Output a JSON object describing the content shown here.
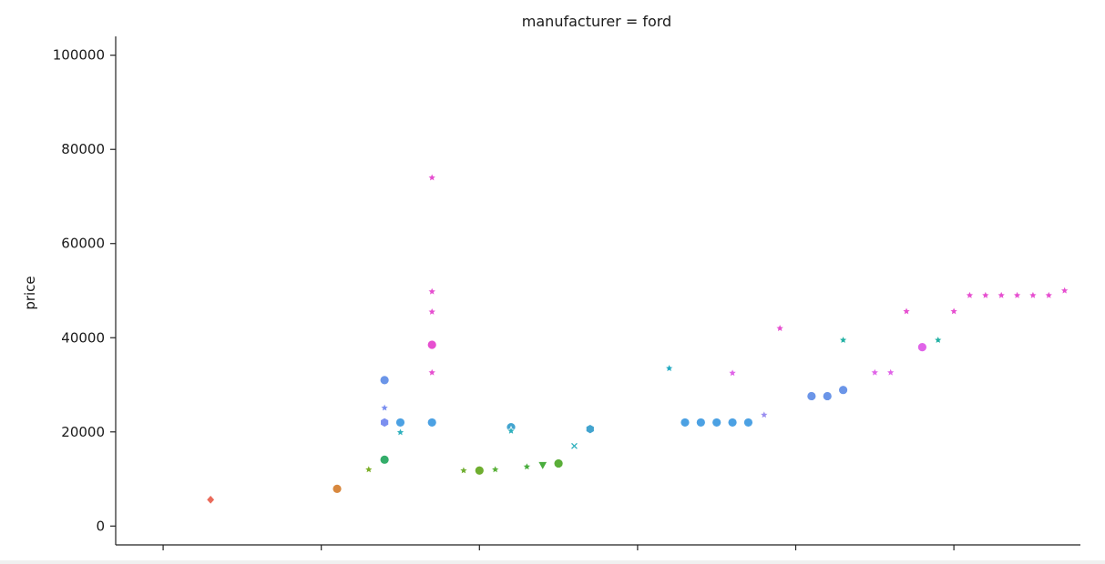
{
  "chart_data": {
    "type": "scatter",
    "title": "manufacturer = ford",
    "xlabel": "",
    "ylabel": "price",
    "ylim": [
      -4000,
      104000
    ],
    "xlim": [
      0,
      61
    ],
    "yticks": [
      0,
      20000,
      40000,
      60000,
      80000,
      100000
    ],
    "ytick_labels": [
      "0",
      "20000",
      "40000",
      "60000",
      "80000",
      "100000"
    ],
    "xticks": [
      3,
      13,
      23,
      33,
      43,
      53,
      63
    ],
    "xtick_labels": [],
    "grid": false,
    "legend": "none",
    "points": [
      {
        "x": 6.0,
        "y": 5600,
        "color": "#ea6b5b",
        "marker": "diamond"
      },
      {
        "x": 14.0,
        "y": 7900,
        "color": "#d8883e",
        "marker": "circle"
      },
      {
        "x": 16.0,
        "y": 12000,
        "color": "#7cae28",
        "marker": "star"
      },
      {
        "x": 17.0,
        "y": 14100,
        "color": "#34ad6a",
        "marker": "circle"
      },
      {
        "x": 17.0,
        "y": 31000,
        "color": "#6b95e8",
        "marker": "circle"
      },
      {
        "x": 17.0,
        "y": 25100,
        "color": "#7b8ff0",
        "marker": "star"
      },
      {
        "x": 17.0,
        "y": 22000,
        "color": "#7b8ff0",
        "marker": "hexagon"
      },
      {
        "x": 18.0,
        "y": 22000,
        "color": "#4ca1e3",
        "marker": "circle"
      },
      {
        "x": 18.0,
        "y": 19900,
        "color": "#2fb0bd",
        "marker": "star"
      },
      {
        "x": 20.0,
        "y": 74000,
        "color": "#e64fd0",
        "marker": "star"
      },
      {
        "x": 20.0,
        "y": 49800,
        "color": "#e64fd0",
        "marker": "star"
      },
      {
        "x": 20.0,
        "y": 45500,
        "color": "#e64fd0",
        "marker": "star"
      },
      {
        "x": 20.0,
        "y": 38500,
        "color": "#e64fd0",
        "marker": "circle"
      },
      {
        "x": 20.0,
        "y": 32600,
        "color": "#e64fd0",
        "marker": "star"
      },
      {
        "x": 20.0,
        "y": 22000,
        "color": "#4ca1e3",
        "marker": "circle"
      },
      {
        "x": 22.0,
        "y": 11800,
        "color": "#6fae30",
        "marker": "star"
      },
      {
        "x": 23.0,
        "y": 11800,
        "color": "#6fae30",
        "marker": "circle"
      },
      {
        "x": 24.0,
        "y": 12000,
        "color": "#58b038",
        "marker": "star"
      },
      {
        "x": 25.0,
        "y": 21000,
        "color": "#43a4cf",
        "marker": "circle"
      },
      {
        "x": 25.0,
        "y": 20200,
        "color": "#2fb0bd",
        "marker": "star"
      },
      {
        "x": 26.0,
        "y": 12600,
        "color": "#49ad3d",
        "marker": "star"
      },
      {
        "x": 27.0,
        "y": 12900,
        "color": "#49ad3d",
        "marker": "triangle-down"
      },
      {
        "x": 28.0,
        "y": 13300,
        "color": "#5aae38",
        "marker": "circle"
      },
      {
        "x": 29.0,
        "y": 17000,
        "color": "#2fb0bd",
        "marker": "x"
      },
      {
        "x": 30.0,
        "y": 20600,
        "color": "#43a4cf",
        "marker": "hexagon"
      },
      {
        "x": 35.0,
        "y": 33500,
        "color": "#21a9c1",
        "marker": "star"
      },
      {
        "x": 36.0,
        "y": 22000,
        "color": "#4ca1e3",
        "marker": "circle"
      },
      {
        "x": 37.0,
        "y": 22000,
        "color": "#4ca1e3",
        "marker": "circle"
      },
      {
        "x": 38.0,
        "y": 22000,
        "color": "#4ca1e3",
        "marker": "circle"
      },
      {
        "x": 39.0,
        "y": 22000,
        "color": "#4ca1e3",
        "marker": "circle"
      },
      {
        "x": 39.0,
        "y": 32500,
        "color": "#e064e8",
        "marker": "star"
      },
      {
        "x": 40.0,
        "y": 22000,
        "color": "#4ca1e3",
        "marker": "circle"
      },
      {
        "x": 41.0,
        "y": 23600,
        "color": "#9b8ff0",
        "marker": "star"
      },
      {
        "x": 42.0,
        "y": 42000,
        "color": "#e64fd0",
        "marker": "star"
      },
      {
        "x": 44.0,
        "y": 27600,
        "color": "#6b95e8",
        "marker": "circle"
      },
      {
        "x": 45.0,
        "y": 27600,
        "color": "#6b95e8",
        "marker": "circle"
      },
      {
        "x": 46.0,
        "y": 28900,
        "color": "#6b95e8",
        "marker": "circle"
      },
      {
        "x": 46.0,
        "y": 39500,
        "color": "#21b0a3",
        "marker": "star"
      },
      {
        "x": 48.0,
        "y": 32600,
        "color": "#e064e8",
        "marker": "star"
      },
      {
        "x": 49.0,
        "y": 32600,
        "color": "#e064e8",
        "marker": "star"
      },
      {
        "x": 50.0,
        "y": 45600,
        "color": "#e64fd0",
        "marker": "star"
      },
      {
        "x": 51.0,
        "y": 38000,
        "color": "#e064e8",
        "marker": "circle"
      },
      {
        "x": 52.0,
        "y": 39500,
        "color": "#21b0a3",
        "marker": "star"
      },
      {
        "x": 53.0,
        "y": 45600,
        "color": "#e64fd0",
        "marker": "star"
      },
      {
        "x": 54.0,
        "y": 49000,
        "color": "#e64fd0",
        "marker": "star"
      },
      {
        "x": 55.0,
        "y": 49000,
        "color": "#e64fd0",
        "marker": "star"
      },
      {
        "x": 56.0,
        "y": 49000,
        "color": "#e64fd0",
        "marker": "star"
      },
      {
        "x": 57.0,
        "y": 49000,
        "color": "#e64fd0",
        "marker": "star"
      },
      {
        "x": 58.0,
        "y": 49000,
        "color": "#e64fd0",
        "marker": "star"
      },
      {
        "x": 59.0,
        "y": 49000,
        "color": "#e64fd0",
        "marker": "star"
      },
      {
        "x": 60.0,
        "y": 50000,
        "color": "#e64fd0",
        "marker": "star"
      }
    ]
  }
}
